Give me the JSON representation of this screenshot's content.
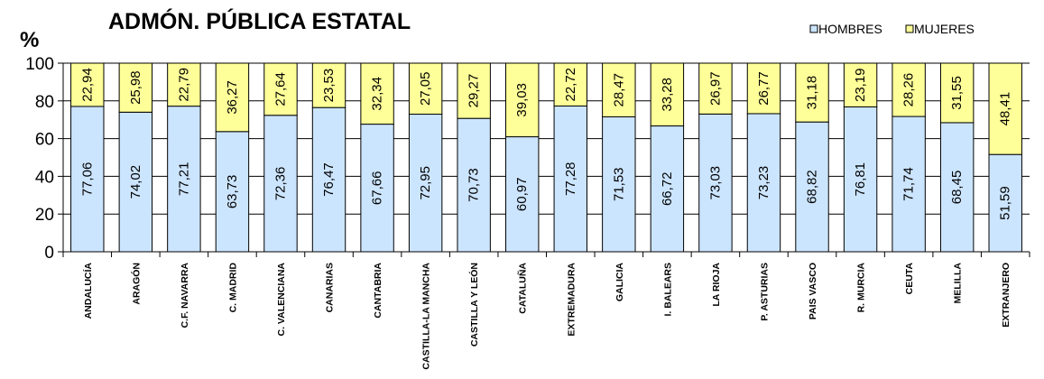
{
  "chart_data": {
    "type": "bar",
    "stacked": true,
    "title": "ADMÓN. PÚBLICA ESTATAL",
    "ylabel": "%",
    "ylim": [
      0,
      100
    ],
    "yticks": [
      "0",
      "20",
      "40",
      "60",
      "80",
      "100"
    ],
    "legend_position": "top-right",
    "categories": [
      "ANDALUCÍA",
      "ARAGÓN",
      "C.F. NAVARRA",
      "C. MADRID",
      "C. VALENCIANA",
      "CANARIAS",
      "CANTABRIA",
      "CASTILLA-LA MANCHA",
      "CASTILLA Y LEÓN",
      "CATALUÑA",
      "EXTREMADURA",
      "GALICIA",
      "I. BALEARS",
      "LA RIOJA",
      "P. ASTURIAS",
      "PAIS VASCO",
      "R. MURCIA",
      "CEUTA",
      "MELILLA",
      "EXTRANJERO"
    ],
    "series": [
      {
        "name": "HOMBRES",
        "color": "#cce5ff",
        "values": [
          77.06,
          74.02,
          77.21,
          63.73,
          72.36,
          76.47,
          67.66,
          72.95,
          70.73,
          60.97,
          77.28,
          71.53,
          66.72,
          73.03,
          73.23,
          68.82,
          76.81,
          71.74,
          68.45,
          51.59
        ],
        "labels": [
          "77,06",
          "74,02",
          "77,21",
          "63,73",
          "72,36",
          "76,47",
          "67,66",
          "72,95",
          "70,73",
          "60,97",
          "77,28",
          "71,53",
          "66,72",
          "73,03",
          "73,23",
          "68,82",
          "76,81",
          "71,74",
          "68,45",
          "51,59"
        ]
      },
      {
        "name": "MUJERES",
        "color": "#ffff99",
        "values": [
          22.94,
          25.98,
          22.79,
          36.27,
          27.64,
          23.53,
          32.34,
          27.05,
          29.27,
          39.03,
          22.72,
          28.47,
          33.28,
          26.97,
          26.77,
          31.18,
          23.19,
          28.26,
          31.55,
          48.41
        ],
        "labels": [
          "22,94",
          "25,98",
          "22,79",
          "36,27",
          "27,64",
          "23,53",
          "32,34",
          "27,05",
          "29,27",
          "39,03",
          "22,72",
          "28,47",
          "33,28",
          "26,97",
          "26,77",
          "31,18",
          "23,19",
          "28,26",
          "31,55",
          "48,41"
        ]
      }
    ]
  }
}
